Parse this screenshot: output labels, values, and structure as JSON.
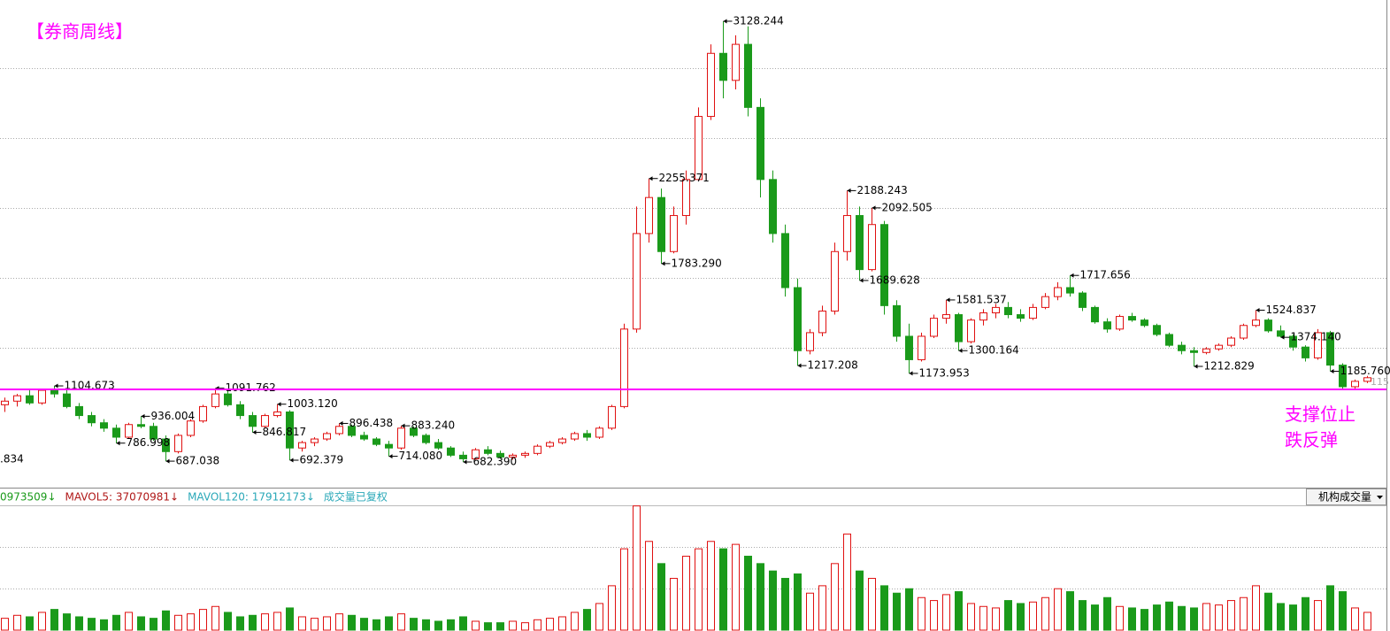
{
  "chart_data": {
    "type": "candlestick",
    "title": "【券商周线】",
    "title_color": "#ff00ff",
    "up_color": "#e01010",
    "down_color": "#1a9a1a",
    "ylim": [
      545,
      3246
    ],
    "yticks": [
      1316,
      1704,
      2092,
      2480,
      2868
    ],
    "grid": true,
    "candles": [
      [
        1000,
        1040,
        960,
        1020
      ],
      [
        1020,
        1060,
        990,
        1050
      ],
      [
        1050,
        1080,
        1000,
        1010
      ],
      [
        1010,
        1090,
        1000,
        1080
      ],
      [
        1080,
        1104.673,
        1040,
        1060
      ],
      [
        1060,
        1080,
        980,
        990
      ],
      [
        990,
        1010,
        920,
        940
      ],
      [
        940,
        960,
        880,
        900
      ],
      [
        900,
        920,
        850,
        870
      ],
      [
        870,
        890,
        786.998,
        820
      ],
      [
        820,
        900,
        810,
        890
      ],
      [
        890,
        936.004,
        870,
        880
      ],
      [
        880,
        900,
        800,
        810
      ],
      [
        810,
        830,
        687.038,
        740
      ],
      [
        740,
        840,
        730,
        830
      ],
      [
        830,
        920,
        820,
        910
      ],
      [
        910,
        1000,
        900,
        990
      ],
      [
        990,
        1091.762,
        980,
        1060
      ],
      [
        1060,
        1080,
        990,
        1000
      ],
      [
        1000,
        1020,
        920,
        940
      ],
      [
        940,
        960,
        846.817,
        880
      ],
      [
        880,
        950,
        870,
        940
      ],
      [
        940,
        1003.12,
        930,
        960
      ],
      [
        960,
        970,
        692.379,
        760
      ],
      [
        760,
        800,
        740,
        790
      ],
      [
        790,
        820,
        770,
        810
      ],
      [
        810,
        850,
        800,
        840
      ],
      [
        840,
        896.438,
        830,
        880
      ],
      [
        880,
        890,
        820,
        830
      ],
      [
        830,
        850,
        800,
        810
      ],
      [
        810,
        820,
        770,
        780
      ],
      [
        780,
        800,
        714.08,
        760
      ],
      [
        760,
        883.24,
        750,
        870
      ],
      [
        870,
        880,
        820,
        830
      ],
      [
        830,
        840,
        780,
        790
      ],
      [
        790,
        810,
        750,
        760
      ],
      [
        760,
        770,
        710,
        720
      ],
      [
        720,
        740,
        682.39,
        700
      ],
      [
        700,
        760,
        695,
        750
      ],
      [
        750,
        770,
        720,
        730
      ],
      [
        730,
        745,
        700,
        710
      ],
      [
        710,
        730,
        695,
        720
      ],
      [
        720,
        740,
        705,
        730
      ],
      [
        730,
        780,
        720,
        770
      ],
      [
        770,
        800,
        760,
        790
      ],
      [
        790,
        820,
        780,
        810
      ],
      [
        810,
        850,
        800,
        840
      ],
      [
        840,
        860,
        800,
        820
      ],
      [
        820,
        880,
        810,
        870
      ],
      [
        870,
        1000,
        860,
        990
      ],
      [
        990,
        1450,
        980,
        1420
      ],
      [
        1420,
        2100,
        1400,
        1950
      ],
      [
        1950,
        2255.371,
        1900,
        2150
      ],
      [
        2150,
        2200,
        1783.29,
        1850
      ],
      [
        1850,
        2100,
        1840,
        2050
      ],
      [
        2050,
        2300,
        2000,
        2250
      ],
      [
        2250,
        2650,
        2240,
        2600
      ],
      [
        2600,
        3000,
        2580,
        2950
      ],
      [
        2950,
        3128.244,
        2700,
        2800
      ],
      [
        2800,
        3050,
        2750,
        3000
      ],
      [
        3000,
        3100,
        2600,
        2650
      ],
      [
        2650,
        2700,
        2150,
        2250
      ],
      [
        2250,
        2300,
        1900,
        1950
      ],
      [
        1950,
        2000,
        1600,
        1650
      ],
      [
        1650,
        1700,
        1217.208,
        1300
      ],
      [
        1300,
        1420,
        1280,
        1400
      ],
      [
        1400,
        1550,
        1380,
        1520
      ],
      [
        1520,
        1900,
        1500,
        1850
      ],
      [
        1850,
        2188.243,
        1800,
        2050
      ],
      [
        2050,
        2100,
        1689.628,
        1750
      ],
      [
        1750,
        2092.505,
        1740,
        2000
      ],
      [
        2000,
        2020,
        1500,
        1550
      ],
      [
        1550,
        1580,
        1350,
        1380
      ],
      [
        1380,
        1450,
        1173.953,
        1250
      ],
      [
        1250,
        1400,
        1240,
        1380
      ],
      [
        1380,
        1500,
        1370,
        1480
      ],
      [
        1480,
        1581.537,
        1450,
        1500
      ],
      [
        1500,
        1510,
        1300.164,
        1350
      ],
      [
        1350,
        1480,
        1340,
        1470
      ],
      [
        1470,
        1530,
        1440,
        1510
      ],
      [
        1510,
        1560,
        1480,
        1540
      ],
      [
        1540,
        1570,
        1480,
        1500
      ],
      [
        1500,
        1530,
        1460,
        1480
      ],
      [
        1480,
        1560,
        1470,
        1540
      ],
      [
        1540,
        1620,
        1530,
        1600
      ],
      [
        1600,
        1680,
        1580,
        1650
      ],
      [
        1650,
        1717.656,
        1600,
        1620
      ],
      [
        1620,
        1630,
        1520,
        1540
      ],
      [
        1540,
        1550,
        1450,
        1460
      ],
      [
        1460,
        1480,
        1400,
        1420
      ],
      [
        1420,
        1500,
        1410,
        1490
      ],
      [
        1490,
        1510,
        1460,
        1470
      ],
      [
        1470,
        1480,
        1430,
        1440
      ],
      [
        1440,
        1450,
        1380,
        1390
      ],
      [
        1390,
        1400,
        1320,
        1330
      ],
      [
        1330,
        1350,
        1280,
        1300
      ],
      [
        1300,
        1320,
        1212.829,
        1290
      ],
      [
        1290,
        1320,
        1280,
        1310
      ],
      [
        1310,
        1340,
        1300,
        1330
      ],
      [
        1330,
        1380,
        1320,
        1370
      ],
      [
        1370,
        1450,
        1360,
        1440
      ],
      [
        1440,
        1524.837,
        1430,
        1470
      ],
      [
        1470,
        1480,
        1400,
        1410
      ],
      [
        1410,
        1440,
        1374.14,
        1380
      ],
      [
        1380,
        1390,
        1300,
        1320
      ],
      [
        1320,
        1330,
        1240,
        1260
      ],
      [
        1260,
        1420,
        1250,
        1400
      ],
      [
        1400,
        1410,
        1185.76,
        1220
      ],
      [
        1220,
        1230,
        1080,
        1100
      ],
      [
        1100,
        1140,
        1090,
        1130
      ],
      [
        1130,
        1160,
        1120,
        1150
      ]
    ],
    "extremes": [
      {
        "index": 4,
        "label": "1104.673"
      },
      {
        "index": 9,
        "label": "786.998"
      },
      {
        "index": 11,
        "label": "936.004"
      },
      {
        "index": 13,
        "label": "687.038"
      },
      {
        "index": 17,
        "label": "1091.762"
      },
      {
        "index": 20,
        "label": "846.817"
      },
      {
        "index": 22,
        "label": "1003.120"
      },
      {
        "index": 23,
        "label": "692.379"
      },
      {
        "index": 27,
        "label": "896.438"
      },
      {
        "index": 31,
        "label": "714.080"
      },
      {
        "index": 32,
        "label": "883.240"
      },
      {
        "index": 37,
        "label": "682.390"
      },
      {
        "index": 52,
        "label": "2255.371"
      },
      {
        "index": 53,
        "label": "1783.290"
      },
      {
        "index": 58,
        "label": "3128.244"
      },
      {
        "index": 64,
        "label": "1217.208"
      },
      {
        "index": 68,
        "label": "2188.243"
      },
      {
        "index": 69,
        "label": "1689.628"
      },
      {
        "index": 70,
        "label": "2092.505"
      },
      {
        "index": 73,
        "label": "1173.953"
      },
      {
        "index": 76,
        "label": "1581.537"
      },
      {
        "index": 77,
        "label": "1300.164"
      },
      {
        "index": 86,
        "label": "1717.656"
      },
      {
        "index": 96,
        "label": "1212.829"
      },
      {
        "index": 101,
        "label": "1524.837"
      },
      {
        "index": 103,
        "label": "1374.140"
      },
      {
        "index": 107,
        "label": "1185.760"
      }
    ],
    "left_cut_label": ".834",
    "right_cut_label": "115",
    "support_line": {
      "value": 1085,
      "label": "支撑位止跌反弹",
      "color": "#ff00ff"
    },
    "volume_ylim": [
      0,
      85000000
    ],
    "volume_yticks": [
      28000000,
      56000000
    ],
    "volume": [
      8000000,
      10000000,
      9000000,
      12000000,
      14000000,
      11000000,
      9000000,
      8000000,
      7000000,
      10000000,
      12000000,
      9000000,
      8000000,
      13000000,
      10000000,
      11000000,
      14000000,
      16000000,
      12000000,
      9000000,
      10000000,
      11000000,
      12000000,
      15000000,
      9000000,
      8000000,
      9000000,
      11000000,
      10000000,
      8000000,
      7000000,
      9000000,
      11000000,
      8000000,
      7000000,
      6000000,
      7000000,
      9000000,
      6000000,
      5000000,
      5000000,
      6000000,
      5000000,
      7000000,
      8000000,
      9000000,
      12000000,
      14000000,
      18000000,
      30000000,
      55000000,
      84000000,
      60000000,
      45000000,
      35000000,
      50000000,
      55000000,
      60000000,
      55000000,
      58000000,
      50000000,
      45000000,
      40000000,
      35000000,
      38000000,
      25000000,
      30000000,
      45000000,
      65000000,
      40000000,
      35000000,
      30000000,
      25000000,
      28000000,
      22000000,
      20000000,
      24000000,
      26000000,
      18000000,
      16000000,
      15000000,
      20000000,
      18000000,
      19000000,
      22000000,
      28000000,
      26000000,
      20000000,
      17000000,
      22000000,
      16000000,
      15000000,
      14000000,
      17000000,
      19000000,
      16000000,
      15000000,
      18000000,
      17000000,
      20000000,
      22000000,
      30000000,
      25000000,
      18000000,
      17000000,
      22000000,
      20000000,
      30000000,
      26000000,
      15000000,
      12000000
    ],
    "volume_header": [
      {
        "text": "0973509↓",
        "color": "#1a9a1a"
      },
      {
        "text": "MAVOL5: 37070981↓",
        "color": "#b01818"
      },
      {
        "text": "MAVOL120: 17912173↓",
        "color": "#2aa8b8"
      },
      {
        "text": "成交量已复权",
        "color": "#2aa8b8"
      }
    ],
    "volume_button": "机构成交量"
  }
}
